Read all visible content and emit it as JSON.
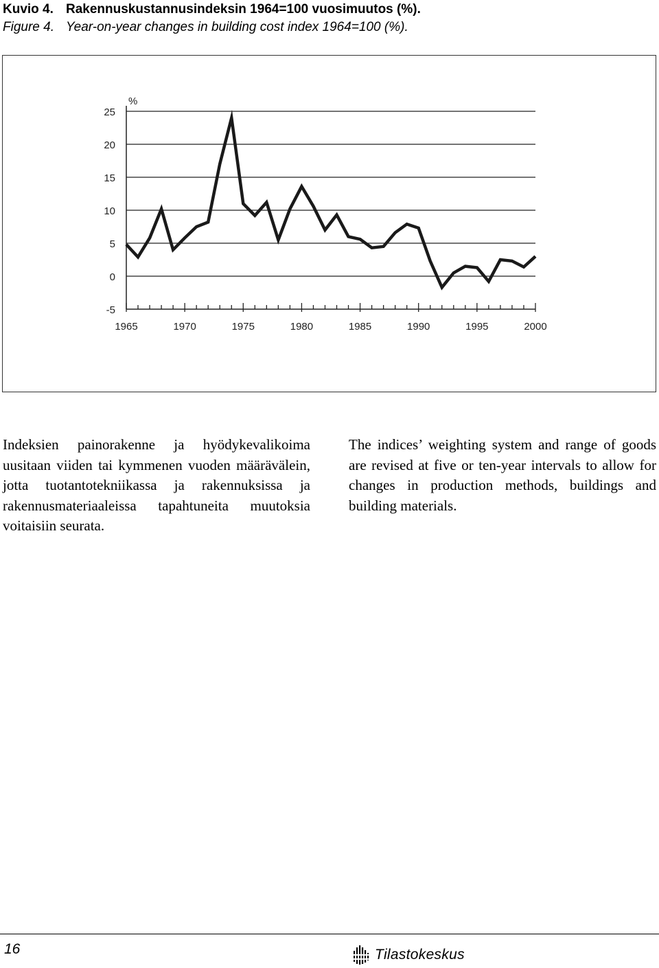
{
  "caption": {
    "fi_label": "Kuvio 4.",
    "fi_title": "Rakennuskustannusindeksin 1964=100 vuosimuutos (%).",
    "en_label": "Figure 4.",
    "en_title": "Year-on-year changes in building cost index 1964=100 (%)."
  },
  "chart_data": {
    "type": "line",
    "title": "",
    "xlabel": "",
    "ylabel": "%",
    "ylim": [
      -5,
      25
    ],
    "xlim": [
      1965,
      2000
    ],
    "y_ticks": [
      "25",
      "20",
      "15",
      "10",
      "5",
      "0",
      "-5"
    ],
    "y_tick_values": [
      25,
      20,
      15,
      10,
      5,
      0,
      -5
    ],
    "x_ticks": [
      "1965",
      "1970",
      "1975",
      "1980",
      "1985",
      "1990",
      "1995",
      "2000"
    ],
    "x_tick_values": [
      1965,
      1970,
      1975,
      1980,
      1985,
      1990,
      1995,
      2000
    ],
    "grid": "horizontal",
    "line_color": "#1a1a1a",
    "series": [
      {
        "x": [
          1965,
          1966,
          1967,
          1968,
          1969,
          1970,
          1971,
          1972,
          1973,
          1974,
          1975,
          1976,
          1977,
          1978,
          1979,
          1980,
          1981,
          1982,
          1983,
          1984,
          1985,
          1986,
          1987,
          1988,
          1989,
          1990,
          1991,
          1992,
          1993,
          1994,
          1995,
          1996,
          1997,
          1998,
          1999,
          2000
        ],
        "values": [
          4.8,
          2.9,
          5.8,
          10.2,
          4.0,
          5.8,
          7.5,
          8.2,
          17.0,
          24.0,
          11.0,
          9.2,
          11.2,
          5.5,
          10.2,
          13.6,
          10.6,
          7.0,
          9.3,
          6.0,
          5.6,
          4.3,
          4.5,
          6.6,
          7.9,
          7.3,
          2.3,
          -1.7,
          0.5,
          1.5,
          1.3,
          -0.8,
          2.5,
          2.3,
          1.4,
          3.0
        ]
      }
    ]
  },
  "text": {
    "fi": "Indeksien painorakenne ja hyödykevalikoima uusitaan viiden tai kymmenen vuoden määrävälein, jotta tuotantotekniikassa ja rakennuksissa ja rakennusmateriaaleissa tapahtuneita muutoksia voitaisiin seurata.",
    "en": "The indices’ weighting system and range of goods are revised at five or ten-year intervals to allow for changes in production methods, buildings and building materials."
  },
  "footer": {
    "page_number": "16",
    "logo_text": "Tilastokeskus",
    "logo_icon": "tilastokeskus-logo-icon"
  }
}
